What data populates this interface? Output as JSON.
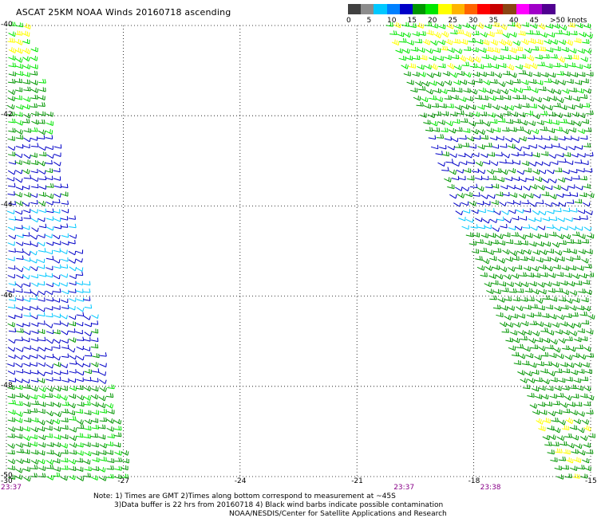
{
  "title": "ASCAT 25KM NOAA Winds 20160718 ascending",
  "legend": {
    "labels": [
      "0",
      "5",
      "10",
      "15",
      "20",
      "25",
      "30",
      "35",
      "40",
      "45",
      ">50 knots"
    ],
    "colors": [
      "#404040",
      "#8c8c8c",
      "#00c8ff",
      "#0080ff",
      "#0000c8",
      "#009600",
      "#00e600",
      "#ffff00",
      "#ffb400",
      "#ff6400",
      "#ff0000",
      "#c80000",
      "#8b4513",
      "#ff00ff",
      "#a000c8",
      "#500090"
    ]
  },
  "map": {
    "lon_range": [
      -30,
      -15
    ],
    "lat_range": [
      -50,
      -40
    ],
    "lon_ticks": [
      "-30",
      "-27",
      "-24",
      "-21",
      "-18",
      "-15"
    ],
    "lat_ticks": [
      "-40",
      "-42",
      "-44",
      "-46",
      "-48",
      "-50"
    ],
    "swaths": [
      {
        "name": "west-swath",
        "top_lon": [
          -30,
          -29.4
        ],
        "bottom_lon": [
          -30,
          -26.8
        ]
      },
      {
        "name": "east-swath",
        "top_lon": [
          -20.3,
          -15
        ],
        "bottom_lon": [
          -15.9,
          -15
        ]
      }
    ]
  },
  "times": [
    "23:37",
    "23:37",
    "23:38"
  ],
  "notes": [
    "Note: 1) Times are GMT 2)Times along bottom correspond to measurement at ~45S",
    "3)Data buffer is 22 hrs from 20160718 4) Black wind barbs indicate possible contamination",
    "NOAA/NESDIS/Center for Satellite Applications and Research"
  ]
}
